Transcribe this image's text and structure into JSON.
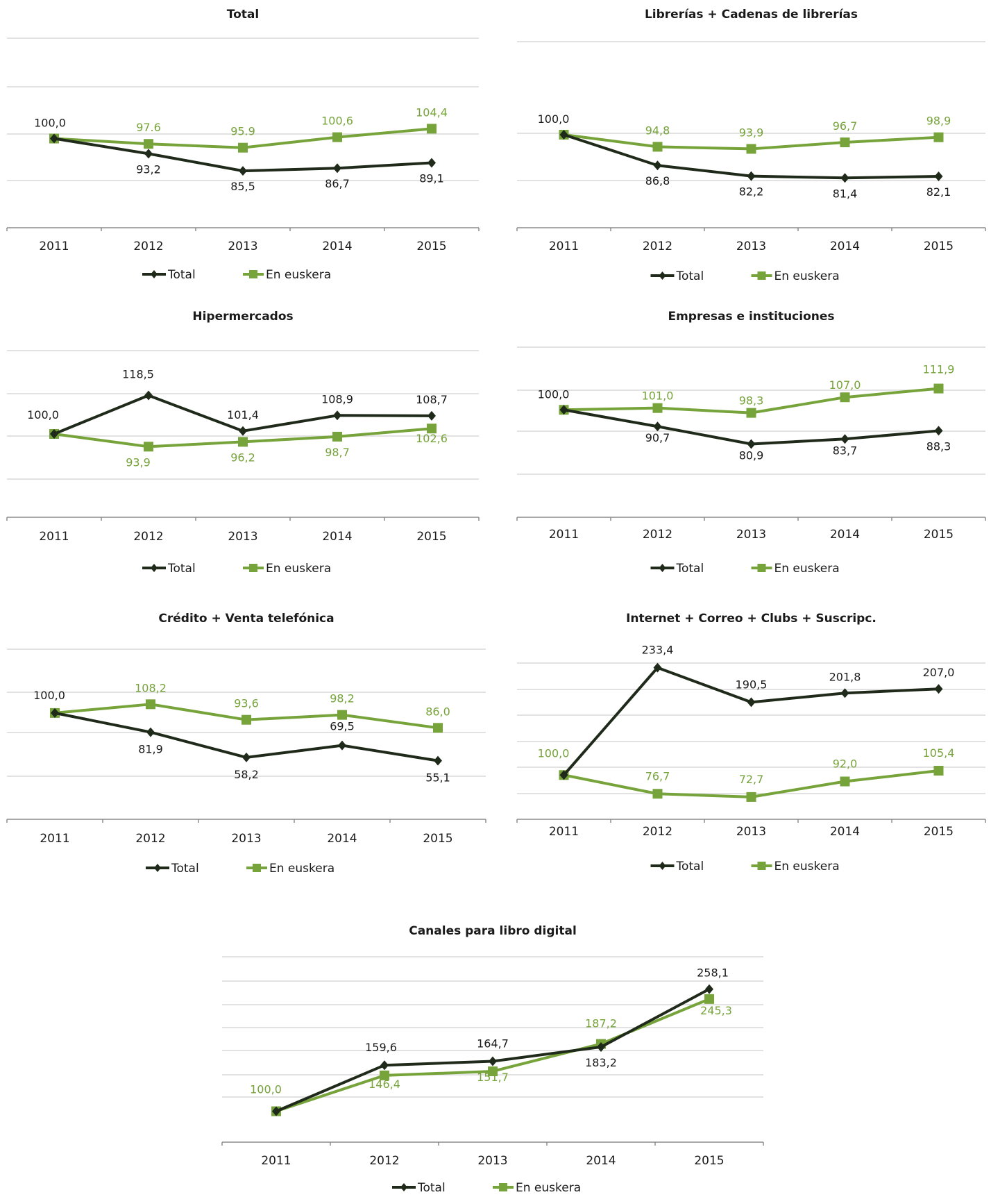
{
  "colors": {
    "total": "#1f2a1a",
    "euskera": "#76a33a",
    "grid": "#d9d9d9",
    "axis": "#8c8c8c"
  },
  "legend": {
    "total": "Total",
    "euskera": "En euskera"
  },
  "chart_data": [
    {
      "type": "line",
      "title": "Total",
      "categories": [
        "2011",
        "2012",
        "2013",
        "2014",
        "2015"
      ],
      "series": [
        {
          "name": "Total",
          "values": [
            100.0,
            93.2,
            85.5,
            86.7,
            89.1
          ],
          "labels": [
            "100,0",
            "93,2",
            "85,5",
            "86,7",
            "89,1"
          ]
        },
        {
          "name": "En euskera",
          "values": [
            100.0,
            97.6,
            95.9,
            100.6,
            104.4
          ],
          "labels": [
            "",
            "97.6",
            "95.9",
            "100,6",
            "104,4"
          ]
        }
      ],
      "grid": true,
      "legend_position": "bottom"
    },
    {
      "type": "line",
      "title": "Librerías + Cadenas de librerías",
      "categories": [
        "2011",
        "2012",
        "2013",
        "2014",
        "2015"
      ],
      "series": [
        {
          "name": "Total",
          "values": [
            100.0,
            86.8,
            82.2,
            81.4,
            82.1
          ],
          "labels": [
            "100,0",
            "86,8",
            "82,2",
            "81,4",
            "82,1"
          ]
        },
        {
          "name": "En euskera",
          "values": [
            100.0,
            94.8,
            93.9,
            96.7,
            98.9
          ],
          "labels": [
            "",
            "94,8",
            "93,9",
            "96,7",
            "98,9"
          ]
        }
      ],
      "grid": true,
      "legend_position": "bottom"
    },
    {
      "type": "line",
      "title": "Hipermercados",
      "categories": [
        "2011",
        "2012",
        "2013",
        "2014",
        "2015"
      ],
      "series": [
        {
          "name": "Total",
          "values": [
            100.0,
            118.5,
            101.4,
            108.9,
            108.7
          ],
          "labels": [
            "100,0",
            "118,5",
            "101,4",
            "108,9",
            "108,7"
          ]
        },
        {
          "name": "En euskera",
          "values": [
            100.0,
            93.9,
            96.2,
            98.7,
            102.6
          ],
          "labels": [
            "",
            "93,9",
            "96,2",
            "98,7",
            "102,6"
          ]
        }
      ],
      "grid": true,
      "legend_position": "bottom"
    },
    {
      "type": "line",
      "title": "Empresas e instituciones",
      "categories": [
        "2011",
        "2012",
        "2013",
        "2014",
        "2015"
      ],
      "series": [
        {
          "name": "Total",
          "values": [
            100.0,
            90.7,
            80.9,
            83.7,
            88.3
          ],
          "labels": [
            "100,0",
            "90,7",
            "80,9",
            "83,7",
            "88,3"
          ]
        },
        {
          "name": "En euskera",
          "values": [
            100.0,
            101.0,
            98.3,
            107.0,
            111.9
          ],
          "labels": [
            "",
            "101,0",
            "98,3",
            "107,0",
            "111,9"
          ]
        }
      ],
      "grid": true,
      "legend_position": "bottom"
    },
    {
      "type": "line",
      "title": "Crédito + Venta telefónica",
      "categories": [
        "2011",
        "2012",
        "2013",
        "2014",
        "2015"
      ],
      "series": [
        {
          "name": "Total",
          "values": [
            100.0,
            81.9,
            58.2,
            69.5,
            55.1
          ],
          "labels": [
            "100,0",
            "81,9",
            "58,2",
            "69,5",
            "55,1"
          ]
        },
        {
          "name": "En euskera",
          "values": [
            100.0,
            108.2,
            93.6,
            98.2,
            86.0
          ],
          "labels": [
            "",
            "108,2",
            "93,6",
            "98,2",
            "86,0"
          ]
        }
      ],
      "grid": true,
      "legend_position": "bottom"
    },
    {
      "type": "line",
      "title": "Internet + Correo + Clubs + Suscripc.",
      "categories": [
        "2011",
        "2012",
        "2013",
        "2014",
        "2015"
      ],
      "series": [
        {
          "name": "Total",
          "values": [
            100.0,
            233.4,
            190.5,
            201.8,
            207.0
          ],
          "labels": [
            "",
            "233,4",
            "190,5",
            "201,8",
            "207,0"
          ]
        },
        {
          "name": "En euskera",
          "values": [
            100.0,
            76.7,
            72.7,
            92.0,
            105.4
          ],
          "labels": [
            "100,0",
            "76,7",
            "72,7",
            "92,0",
            "105,4"
          ]
        }
      ],
      "grid": true,
      "legend_position": "bottom"
    },
    {
      "type": "line",
      "title": "Canales para libro digital",
      "categories": [
        "2011",
        "2012",
        "2013",
        "2014",
        "2015"
      ],
      "series": [
        {
          "name": "Total",
          "values": [
            100.0,
            159.6,
            164.7,
            183.2,
            258.1
          ],
          "labels": [
            "",
            "159,6",
            "164,7",
            "183,2",
            "258,1"
          ]
        },
        {
          "name": "En euskera",
          "values": [
            100.0,
            146.4,
            151.7,
            187.2,
            245.3
          ],
          "labels": [
            "100,0",
            "146,4",
            "151,7",
            "187,2",
            "245,3"
          ]
        }
      ],
      "grid": true,
      "legend_position": "bottom"
    }
  ]
}
